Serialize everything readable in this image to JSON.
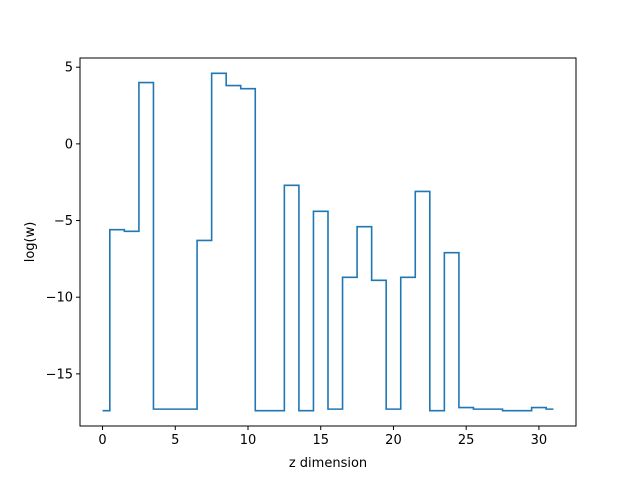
{
  "chart_data": {
    "type": "line",
    "style": "step",
    "xlabel": "z dimension",
    "ylabel": "log(w)",
    "xlim": [
      -1.55,
      32.55
    ],
    "ylim": [
      -18.4,
      5.6
    ],
    "xticks": [
      0,
      5,
      10,
      15,
      20,
      25,
      30
    ],
    "yticks": [
      5,
      0,
      -5,
      -10,
      -15
    ],
    "ytick_labels": [
      "5",
      "0",
      "−5",
      "−10",
      "−15"
    ],
    "grid": false,
    "line_color": "#1f77b4",
    "x": [
      0,
      1,
      2,
      3,
      4,
      5,
      6,
      7,
      8,
      9,
      10,
      11,
      12,
      13,
      14,
      15,
      16,
      17,
      18,
      19,
      20,
      21,
      22,
      23,
      24,
      25,
      26,
      27,
      28,
      29,
      30,
      31
    ],
    "values": [
      -17.4,
      -5.6,
      -5.7,
      4.0,
      -17.3,
      -17.3,
      -17.3,
      -6.3,
      4.6,
      3.8,
      3.6,
      -17.4,
      -17.4,
      -2.7,
      -17.4,
      -4.4,
      -17.3,
      -8.7,
      -5.4,
      -8.9,
      -17.3,
      -8.7,
      -3.1,
      -17.4,
      -7.1,
      -17.2,
      -17.3,
      -17.3,
      -17.4,
      -17.4,
      -17.2,
      -17.3
    ]
  }
}
